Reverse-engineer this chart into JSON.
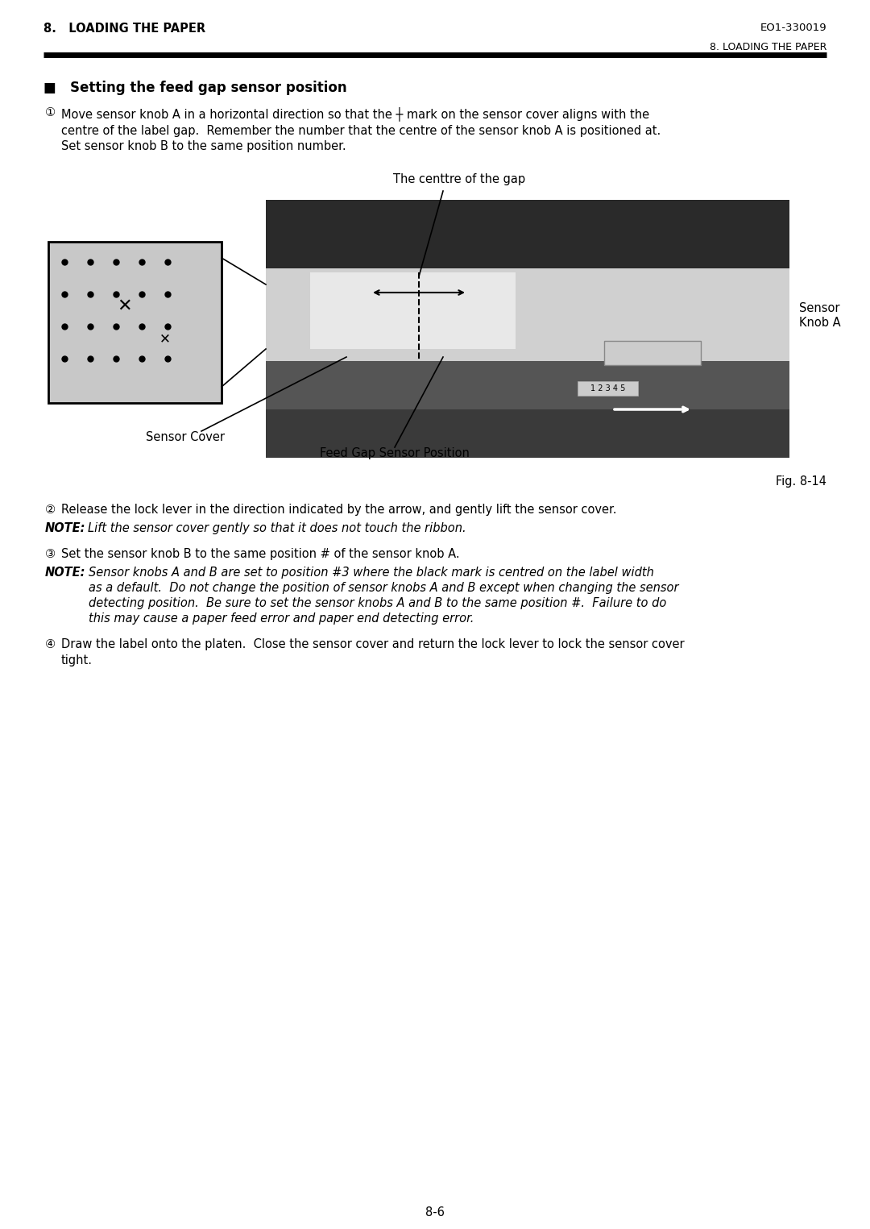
{
  "page_bg": "#ffffff",
  "header_left": "8.   LOADING THE PAPER",
  "header_right": "EO1-330019",
  "subheader_right": "8. LOADING THE PAPER",
  "section_title": "■   Setting the feed gap sensor position",
  "step1_text": "Move sensor knob A in a horizontal direction so that the ┼ mark on the sensor cover aligns with the\ncentre of the label gap.  Remember the number that the centre of the sensor knob A is positioned at.\nSet sensor knob B to the same position number.",
  "caption_gap": "The centtre of the gap",
  "caption_sensor_cover": "Sensor Cover",
  "caption_feed_gap": "Feed Gap Sensor Position",
  "caption_sensor_knob_a": "Sensor",
  "caption_sensor_knob_b": "Knob A",
  "fig_label": "Fig. 8-14",
  "step2_text": "Release the lock lever in the direction indicated by the arrow, and gently lift the sensor cover.",
  "note2_italic": "Lift the sensor cover gently so that it does not touch the ribbon.",
  "step3_text": "Set the sensor knob B to the same position # of the sensor knob A.",
  "note3_line1": "Sensor knobs A and B are set to position #3 where the black mark is centred on the label width",
  "note3_line2": "as a default.  Do not change the position of sensor knobs A and B except when changing the sensor",
  "note3_line3": "detecting position.  Be sure to set the sensor knobs A and B to the same position #.  Failure to do",
  "note3_line4": "this may cause a paper feed error and paper end detecting error.",
  "step4_text_1": "Draw the label onto the platen.  Close the sensor cover and return the lock lever to lock the sensor cover",
  "step4_text_2": "tight.",
  "page_num": "8-6",
  "font_color": "#000000"
}
